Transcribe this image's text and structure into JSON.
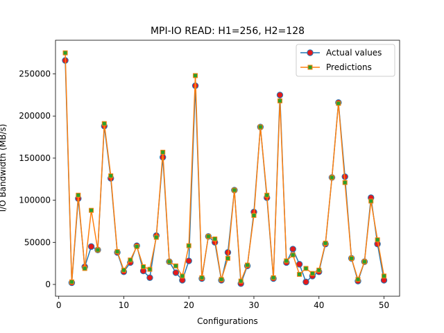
{
  "chart_data": {
    "type": "line",
    "title": "MPI-IO READ: H1=256, H2=128",
    "xlabel": "Configurations",
    "ylabel": "I/O Bandwidth (MB/s)",
    "xlim": [
      -0.5,
      52.4
    ],
    "ylim": [
      -14000,
      290000
    ],
    "xticks": [
      0,
      10,
      20,
      30,
      40,
      50
    ],
    "yticks": [
      0,
      50000,
      100000,
      150000,
      200000,
      250000
    ],
    "xtick_labels": [
      "0",
      "10",
      "20",
      "30",
      "40",
      "50"
    ],
    "ytick_labels": [
      "0",
      "50000",
      "100000",
      "150000",
      "200000",
      "250000"
    ],
    "grid": false,
    "legend_position": "top-right",
    "x": [
      1,
      2,
      3,
      4,
      5,
      6,
      7,
      8,
      9,
      10,
      11,
      12,
      13,
      14,
      15,
      16,
      17,
      18,
      19,
      20,
      21,
      22,
      23,
      24,
      25,
      26,
      27,
      28,
      29,
      30,
      31,
      32,
      33,
      34,
      35,
      36,
      37,
      38,
      39,
      40,
      41,
      42,
      43,
      44,
      45,
      46,
      47,
      48,
      49,
      50
    ],
    "series": [
      {
        "name": "Actual values",
        "color": "#1f77b4",
        "marker": "circle",
        "marker_color": "#e31a1c",
        "values": [
          266000,
          2000,
          102000,
          21000,
          45000,
          41000,
          188000,
          126000,
          38000,
          15000,
          26000,
          46000,
          16000,
          8000,
          58000,
          151000,
          27000,
          14000,
          5000,
          28000,
          236000,
          7000,
          57000,
          50000,
          5000,
          38000,
          112000,
          1000,
          22000,
          86000,
          187000,
          103000,
          7000,
          225000,
          26000,
          42000,
          24000,
          3000,
          10000,
          15000,
          48000,
          127000,
          216000,
          128000,
          31000,
          4000,
          27000,
          103000,
          48000,
          5000
        ]
      },
      {
        "name": "Predictions",
        "color": "#ff7f0e",
        "marker": "square",
        "marker_color": "#2ca02c",
        "values": [
          275000,
          3000,
          106000,
          19000,
          88000,
          41000,
          191000,
          129000,
          39000,
          17000,
          29000,
          45000,
          21000,
          18000,
          56000,
          157000,
          27000,
          22000,
          10000,
          46000,
          248000,
          8000,
          57000,
          54000,
          6000,
          31000,
          112000,
          4000,
          23000,
          82000,
          187000,
          106000,
          8000,
          218000,
          28000,
          35000,
          12000,
          19000,
          13000,
          17000,
          49000,
          127000,
          215000,
          121000,
          31000,
          6000,
          27000,
          99000,
          53000,
          10000
        ]
      }
    ]
  }
}
